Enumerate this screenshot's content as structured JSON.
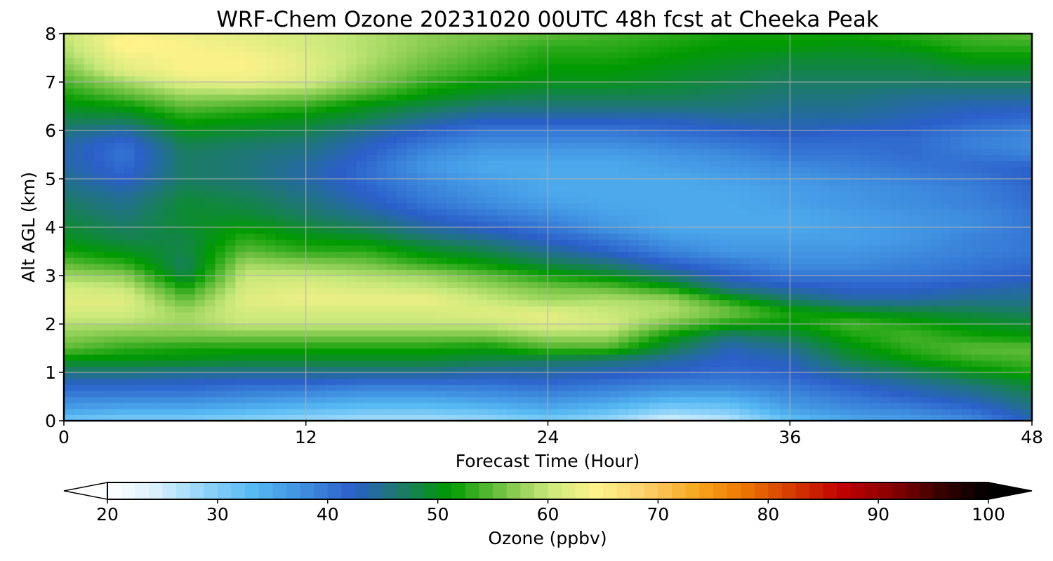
{
  "chart_data": {
    "type": "heatmap",
    "title": "WRF-Chem Ozone  20231020 00UTC 48h fcst at Cheeka Peak",
    "xlabel": "Forecast Time (Hour)",
    "ylabel": "Alt AGL (km)",
    "xlim": [
      0,
      48
    ],
    "ylim": [
      0,
      8
    ],
    "xticks": [
      0,
      12,
      24,
      36,
      48
    ],
    "yticks": [
      0,
      1,
      2,
      3,
      4,
      5,
      6,
      7,
      8
    ],
    "grid": true,
    "colorbar": {
      "label": "Ozone  (ppbv)",
      "min": 20,
      "max": 100,
      "ticks": [
        20,
        30,
        40,
        50,
        60,
        70,
        80,
        90,
        100
      ],
      "extend": "both",
      "palette": [
        "#ffffff",
        "#d8f1fc",
        "#8fd3fa",
        "#55b9f2",
        "#3f8fe0",
        "#2b5fc9",
        "#1c7a6a",
        "#009a00",
        "#6cc040",
        "#c8e87a",
        "#fff38a",
        "#fdd06a",
        "#f7a820",
        "#ee7700",
        "#d43a00",
        "#c00000",
        "#8a0000",
        "#3a0000",
        "#000000"
      ]
    },
    "x": [
      0,
      3,
      6,
      9,
      12,
      15,
      18,
      21,
      24,
      27,
      30,
      33,
      36,
      39,
      42,
      45,
      48
    ],
    "y": [
      0,
      0.25,
      0.5,
      0.75,
      1,
      1.25,
      1.5,
      1.75,
      2,
      2.25,
      2.5,
      2.75,
      3,
      3.25,
      3.5,
      3.75,
      4,
      4.25,
      4.5,
      4.75,
      5,
      5.25,
      5.5,
      5.75,
      6,
      6.25,
      6.5,
      6.75,
      7,
      7.25,
      7.5,
      7.75,
      8
    ],
    "z": [
      [
        31,
        30,
        30,
        29,
        28,
        27,
        27,
        28,
        30,
        28,
        24,
        26,
        32,
        35,
        36,
        38,
        43
      ],
      [
        36,
        35,
        35,
        34,
        33,
        32,
        32,
        33,
        35,
        33,
        30,
        31,
        36,
        38,
        39,
        41,
        45
      ],
      [
        39,
        39,
        39,
        38,
        37,
        36,
        36,
        37,
        38,
        37,
        35,
        35,
        38,
        40,
        42,
        44,
        47
      ],
      [
        42,
        42,
        42,
        41,
        41,
        40,
        40,
        40,
        41,
        40,
        39,
        39,
        40,
        42,
        44,
        46,
        49
      ],
      [
        46,
        46,
        45,
        45,
        45,
        45,
        45,
        44,
        44,
        43,
        42,
        41,
        42,
        45,
        47,
        50,
        52
      ],
      [
        50,
        50,
        50,
        49,
        49,
        49,
        49,
        48,
        47,
        46,
        44,
        42,
        43,
        48,
        51,
        53,
        54
      ],
      [
        55,
        53,
        52,
        52,
        52,
        52,
        52,
        51,
        54,
        54,
        48,
        43,
        45,
        50,
        53,
        55,
        55
      ],
      [
        57,
        56,
        56,
        56,
        56,
        56,
        56,
        56,
        58,
        58,
        51,
        46,
        48,
        52,
        54,
        52,
        51
      ],
      [
        59,
        59,
        58,
        60,
        60,
        60,
        60,
        60,
        62,
        61,
        56,
        52,
        51,
        54,
        52,
        50,
        49
      ],
      [
        61,
        61,
        58,
        61,
        61,
        61,
        61,
        62,
        62,
        60,
        59,
        56,
        52,
        50,
        49,
        48,
        47
      ],
      [
        62,
        62,
        55,
        62,
        63,
        63,
        63,
        60,
        58,
        59,
        58,
        52,
        47,
        44,
        44,
        45,
        45
      ],
      [
        61,
        60,
        52,
        61,
        62,
        61,
        60,
        58,
        56,
        55,
        52,
        45,
        43,
        42,
        42,
        43,
        44
      ],
      [
        58,
        57,
        48,
        60,
        60,
        59,
        58,
        55,
        52,
        50,
        46,
        42,
        40,
        40,
        40,
        41,
        42
      ],
      [
        55,
        53,
        47,
        58,
        57,
        56,
        53,
        51,
        48,
        46,
        42,
        40,
        38,
        38,
        39,
        40,
        41
      ],
      [
        52,
        50,
        48,
        55,
        53,
        53,
        50,
        48,
        45,
        42,
        39,
        37,
        37,
        37,
        38,
        39,
        40
      ],
      [
        50,
        48,
        48,
        53,
        51,
        50,
        47,
        45,
        42,
        40,
        37,
        36,
        36,
        36,
        37,
        39,
        40
      ],
      [
        49,
        47,
        49,
        51,
        49,
        47,
        44,
        42,
        40,
        37,
        35,
        35,
        35,
        36,
        37,
        38,
        40
      ],
      [
        48,
        46,
        49,
        49,
        47,
        45,
        42,
        40,
        38,
        36,
        35,
        35,
        35,
        36,
        37,
        38,
        40
      ],
      [
        47,
        45,
        49,
        48,
        46,
        43,
        40,
        38,
        36,
        35,
        35,
        35,
        36,
        37,
        38,
        39,
        41
      ],
      [
        46,
        44,
        48,
        47,
        45,
        42,
        39,
        37,
        35,
        35,
        35,
        35,
        36,
        37,
        38,
        39,
        41
      ],
      [
        45,
        42,
        47,
        46,
        44,
        41,
        38,
        36,
        35,
        35,
        35,
        36,
        37,
        38,
        39,
        40,
        42
      ],
      [
        44,
        41,
        47,
        46,
        44,
        41,
        37,
        35,
        35,
        35,
        36,
        37,
        38,
        39,
        40,
        41,
        42
      ],
      [
        44,
        40,
        47,
        46,
        45,
        42,
        38,
        36,
        36,
        36,
        37,
        38,
        40,
        40,
        41,
        40,
        39
      ],
      [
        44,
        41,
        48,
        47,
        46,
        43,
        40,
        38,
        38,
        38,
        39,
        40,
        41,
        41,
        41,
        39,
        38
      ],
      [
        46,
        44,
        50,
        49,
        48,
        45,
        42,
        40,
        40,
        40,
        41,
        42,
        43,
        42,
        42,
        40,
        39
      ],
      [
        48,
        48,
        52,
        51,
        50,
        48,
        45,
        43,
        43,
        43,
        43,
        44,
        44,
        44,
        43,
        42,
        41
      ],
      [
        50,
        51,
        55,
        54,
        53,
        50,
        48,
        46,
        46,
        46,
        46,
        46,
        45,
        45,
        44,
        43,
        43
      ],
      [
        52,
        55,
        58,
        58,
        57,
        54,
        51,
        49,
        48,
        48,
        48,
        47,
        46,
        46,
        45,
        45,
        45
      ],
      [
        54,
        58,
        62,
        63,
        61,
        57,
        53,
        51,
        50,
        50,
        49,
        48,
        47,
        47,
        47,
        47,
        47
      ],
      [
        56,
        62,
        64,
        64,
        62,
        58,
        55,
        53,
        51,
        51,
        50,
        49,
        48,
        48,
        48,
        49,
        49
      ],
      [
        58,
        63,
        64,
        64,
        62,
        59,
        56,
        54,
        52,
        52,
        51,
        50,
        49,
        49,
        49,
        51,
        51
      ],
      [
        59,
        65,
        64,
        63,
        61,
        59,
        57,
        55,
        53,
        53,
        52,
        51,
        51,
        50,
        51,
        53,
        53
      ],
      [
        60,
        64,
        63,
        62,
        61,
        59,
        57,
        56,
        55,
        54,
        53,
        52,
        52,
        52,
        53,
        54,
        55
      ]
    ]
  }
}
